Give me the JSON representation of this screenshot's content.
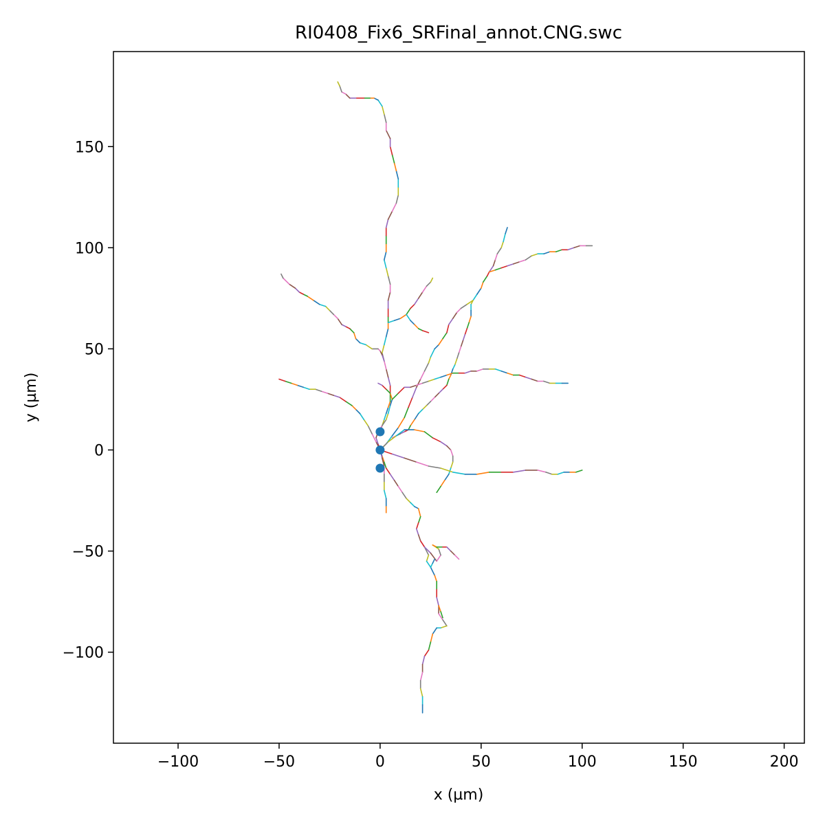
{
  "chart_data": {
    "type": "line",
    "title": "RI0408_Fix6_SRFinal_annot.CNG.swc",
    "xlabel": "x (µm)",
    "ylabel": "y (µm)",
    "xlim": [
      -132,
      210
    ],
    "ylim": [
      -145,
      197
    ],
    "xticks": [
      -100,
      -50,
      0,
      50,
      100,
      150,
      200
    ],
    "yticks": [
      -100,
      -50,
      0,
      50,
      100,
      150
    ],
    "grid": false,
    "legend": "none",
    "segment_colors": [
      "#1f77b4",
      "#ff7f0e",
      "#2ca02c",
      "#d62728",
      "#9467bd",
      "#8c564b",
      "#e377c2",
      "#7f7f7f",
      "#bcbd22",
      "#17becf"
    ],
    "marker_color": "#1f77b4",
    "soma_points": [
      [
        0,
        9
      ],
      [
        0,
        0
      ],
      [
        0,
        -9
      ]
    ],
    "branches": [
      [
        [
          0,
          0
        ],
        [
          1,
          -3
        ],
        [
          2,
          -6
        ],
        [
          3,
          -9
        ],
        [
          5,
          -12
        ],
        [
          7,
          -15
        ],
        [
          9,
          -18
        ],
        [
          11,
          -21
        ],
        [
          13,
          -24
        ],
        [
          15,
          -26
        ],
        [
          17,
          -28
        ],
        [
          19,
          -29
        ],
        [
          20,
          -33
        ],
        [
          19,
          -36
        ],
        [
          18,
          -39
        ],
        [
          19,
          -42
        ],
        [
          20,
          -45
        ],
        [
          22,
          -48
        ],
        [
          24,
          -52
        ],
        [
          23,
          -55
        ],
        [
          25,
          -58
        ],
        [
          27,
          -62
        ],
        [
          28,
          -65
        ],
        [
          28,
          -69
        ],
        [
          28,
          -73
        ],
        [
          29,
          -77
        ],
        [
          29,
          -81
        ],
        [
          31,
          -84
        ],
        [
          33,
          -87
        ],
        [
          30,
          -88
        ],
        [
          28,
          -88
        ],
        [
          26,
          -91
        ],
        [
          25,
          -95
        ],
        [
          24,
          -99
        ],
        [
          22,
          -102
        ],
        [
          21,
          -106
        ],
        [
          21,
          -110
        ],
        [
          20,
          -114
        ],
        [
          20,
          -118
        ],
        [
          21,
          -122
        ],
        [
          21,
          -126
        ],
        [
          21,
          -130
        ]
      ],
      [
        [
          29,
          -77
        ],
        [
          30,
          -80
        ],
        [
          31,
          -83
        ]
      ],
      [
        [
          20,
          -45
        ],
        [
          22,
          -48
        ],
        [
          25,
          -51
        ],
        [
          28,
          -55
        ],
        [
          30,
          -52
        ],
        [
          29,
          -49
        ],
        [
          26,
          -47
        ]
      ],
      [
        [
          25,
          -58
        ],
        [
          26,
          -56
        ],
        [
          27,
          -54
        ]
      ],
      [
        [
          26,
          -47
        ],
        [
          28,
          -48
        ],
        [
          31,
          -48
        ],
        [
          33,
          -48
        ],
        [
          35,
          -50
        ],
        [
          37,
          -52
        ],
        [
          39,
          -54
        ]
      ],
      [
        [
          0,
          9
        ],
        [
          1,
          12
        ],
        [
          2,
          15
        ],
        [
          3,
          18
        ],
        [
          4,
          21
        ],
        [
          5,
          24
        ],
        [
          5,
          28
        ],
        [
          5,
          32
        ],
        [
          4,
          36
        ],
        [
          3,
          40
        ],
        [
          2,
          44
        ],
        [
          1,
          48
        ],
        [
          2,
          52
        ],
        [
          3,
          56
        ],
        [
          4,
          60
        ],
        [
          4,
          63
        ],
        [
          4,
          66
        ],
        [
          4,
          70
        ],
        [
          4,
          74
        ],
        [
          5,
          78
        ],
        [
          5,
          82
        ],
        [
          4,
          86
        ],
        [
          3,
          90
        ],
        [
          2,
          94
        ],
        [
          3,
          98
        ],
        [
          3,
          102
        ],
        [
          3,
          106
        ],
        [
          3,
          110
        ],
        [
          4,
          114
        ],
        [
          6,
          118
        ],
        [
          8,
          122
        ],
        [
          9,
          126
        ],
        [
          9,
          130
        ],
        [
          9,
          134
        ],
        [
          8,
          138
        ],
        [
          7,
          142
        ],
        [
          6,
          146
        ],
        [
          5,
          150
        ],
        [
          5,
          154
        ],
        [
          3,
          158
        ],
        [
          3,
          162
        ],
        [
          2,
          166
        ],
        [
          1,
          170
        ],
        [
          -1,
          173
        ],
        [
          -3,
          174
        ],
        [
          -5,
          174
        ],
        [
          -8,
          174
        ],
        [
          -12,
          174
        ],
        [
          -15,
          174
        ],
        [
          -17,
          176
        ],
        [
          -19,
          177
        ],
        [
          -20,
          180
        ],
        [
          -21,
          182
        ]
      ],
      [
        [
          4,
          63
        ],
        [
          7,
          64
        ],
        [
          10,
          65
        ],
        [
          13,
          67
        ],
        [
          15,
          70
        ],
        [
          17,
          72
        ],
        [
          19,
          75
        ],
        [
          21,
          78
        ],
        [
          23,
          81
        ],
        [
          25,
          83
        ],
        [
          26,
          85
        ]
      ],
      [
        [
          13,
          67
        ],
        [
          15,
          64
        ],
        [
          17,
          62
        ],
        [
          19,
          60
        ],
        [
          21,
          59
        ],
        [
          24,
          58
        ]
      ],
      [
        [
          2,
          44
        ],
        [
          1,
          47
        ],
        [
          0,
          49
        ],
        [
          -1,
          50
        ],
        [
          -4,
          50
        ],
        [
          -7,
          52
        ],
        [
          -10,
          53
        ],
        [
          -12,
          55
        ],
        [
          -13,
          58
        ],
        [
          -15,
          60
        ],
        [
          -17,
          61
        ],
        [
          -19,
          62
        ],
        [
          -21,
          65
        ],
        [
          -23,
          67
        ],
        [
          -25,
          69
        ],
        [
          -27,
          71
        ],
        [
          -30,
          72
        ],
        [
          -33,
          74
        ],
        [
          -36,
          76
        ],
        [
          -38,
          77
        ],
        [
          -40,
          78
        ],
        [
          -42,
          80
        ],
        [
          -45,
          82
        ],
        [
          -48,
          85
        ],
        [
          -49,
          87
        ]
      ],
      [
        [
          0,
          0
        ],
        [
          3,
          3
        ],
        [
          6,
          7
        ],
        [
          9,
          11
        ],
        [
          12,
          16
        ],
        [
          14,
          21
        ],
        [
          16,
          26
        ],
        [
          18,
          31
        ],
        [
          20,
          35
        ],
        [
          22,
          39
        ],
        [
          24,
          43
        ],
        [
          25,
          46
        ],
        [
          27,
          50
        ],
        [
          29,
          52
        ],
        [
          31,
          55
        ],
        [
          33,
          58
        ],
        [
          34,
          62
        ],
        [
          36,
          65
        ],
        [
          38,
          68
        ],
        [
          40,
          70
        ],
        [
          43,
          72
        ],
        [
          46,
          74
        ],
        [
          48,
          77
        ],
        [
          50,
          80
        ],
        [
          51,
          83
        ],
        [
          53,
          86
        ],
        [
          54,
          88
        ],
        [
          56,
          91
        ],
        [
          57,
          94
        ],
        [
          58,
          97
        ],
        [
          60,
          100
        ],
        [
          61,
          103
        ],
        [
          62,
          107
        ],
        [
          63,
          110
        ]
      ],
      [
        [
          54,
          88
        ],
        [
          57,
          89
        ],
        [
          60,
          90
        ],
        [
          63,
          91
        ],
        [
          66,
          92
        ],
        [
          69,
          93
        ],
        [
          72,
          94
        ],
        [
          75,
          96
        ],
        [
          78,
          97
        ],
        [
          81,
          97
        ],
        [
          84,
          98
        ],
        [
          87,
          98
        ],
        [
          90,
          99
        ],
        [
          93,
          99
        ],
        [
          96,
          100
        ],
        [
          99,
          101
        ],
        [
          102,
          101
        ],
        [
          105,
          101
        ]
      ],
      [
        [
          46,
          74
        ],
        [
          45,
          72
        ],
        [
          45,
          69
        ],
        [
          45,
          66
        ],
        [
          44,
          63
        ],
        [
          43,
          60
        ],
        [
          42,
          57
        ],
        [
          41,
          54
        ],
        [
          40,
          51
        ],
        [
          39,
          48
        ],
        [
          38,
          45
        ],
        [
          37,
          42
        ],
        [
          36,
          40
        ],
        [
          35,
          37
        ],
        [
          34,
          35
        ],
        [
          33,
          32
        ],
        [
          31,
          30
        ],
        [
          29,
          28
        ],
        [
          27,
          26
        ],
        [
          25,
          24
        ],
        [
          23,
          22
        ],
        [
          21,
          20
        ],
        [
          19,
          18
        ],
        [
          17,
          15
        ],
        [
          15,
          12
        ],
        [
          14,
          10
        ],
        [
          12,
          9
        ],
        [
          10,
          8
        ],
        [
          8,
          7
        ],
        [
          6,
          6
        ]
      ],
      [
        [
          0,
          0
        ],
        [
          4,
          4
        ],
        [
          8,
          7
        ],
        [
          12,
          10
        ],
        [
          17,
          10
        ],
        [
          22,
          9
        ],
        [
          26,
          6
        ],
        [
          30,
          4
        ],
        [
          33,
          2
        ],
        [
          35,
          0
        ],
        [
          36,
          -3
        ],
        [
          36,
          -6
        ],
        [
          35,
          -9
        ],
        [
          34,
          -12
        ],
        [
          32,
          -15
        ],
        [
          30,
          -18
        ],
        [
          28,
          -21
        ]
      ],
      [
        [
          0,
          0
        ],
        [
          6,
          -2
        ],
        [
          12,
          -4
        ],
        [
          18,
          -6
        ],
        [
          24,
          -8
        ],
        [
          30,
          -9
        ],
        [
          36,
          -11
        ],
        [
          42,
          -12
        ],
        [
          48,
          -12
        ],
        [
          54,
          -11
        ],
        [
          60,
          -11
        ],
        [
          66,
          -11
        ],
        [
          72,
          -10
        ],
        [
          78,
          -10
        ],
        [
          82,
          -11
        ],
        [
          85,
          -12
        ],
        [
          88,
          -12
        ],
        [
          91,
          -11
        ],
        [
          94,
          -11
        ],
        [
          97,
          -11
        ],
        [
          100,
          -10
        ]
      ],
      [
        [
          0,
          0
        ],
        [
          -1,
          3
        ],
        [
          -2,
          6
        ],
        [
          -1,
          9
        ],
        [
          1,
          12
        ],
        [
          3,
          15
        ],
        [
          4,
          18
        ],
        [
          5,
          22
        ],
        [
          6,
          25
        ],
        [
          5,
          28
        ],
        [
          3,
          30
        ],
        [
          1,
          32
        ],
        [
          -1,
          33
        ]
      ],
      [
        [
          0,
          0
        ],
        [
          -2,
          4
        ],
        [
          -4,
          8
        ],
        [
          -6,
          12
        ],
        [
          -8,
          15
        ],
        [
          -10,
          18
        ],
        [
          -12,
          20
        ],
        [
          -14,
          22
        ],
        [
          -17,
          24
        ],
        [
          -20,
          26
        ],
        [
          -23,
          27
        ],
        [
          -26,
          28
        ],
        [
          -29,
          29
        ],
        [
          -32,
          30
        ],
        [
          -35,
          30
        ],
        [
          -38,
          31
        ],
        [
          -41,
          32
        ],
        [
          -44,
          33
        ],
        [
          -47,
          34
        ],
        [
          -50,
          35
        ]
      ],
      [
        [
          0,
          0
        ],
        [
          1,
          -4
        ],
        [
          2,
          -8
        ],
        [
          2,
          -12
        ],
        [
          2,
          -16
        ],
        [
          2,
          -20
        ],
        [
          3,
          -24
        ],
        [
          3,
          -28
        ],
        [
          3,
          -31
        ]
      ],
      [
        [
          6,
          25
        ],
        [
          9,
          28
        ],
        [
          12,
          31
        ],
        [
          15,
          31
        ],
        [
          18,
          32
        ],
        [
          21,
          33
        ],
        [
          24,
          34
        ],
        [
          27,
          35
        ],
        [
          30,
          36
        ],
        [
          33,
          37
        ],
        [
          36,
          38
        ],
        [
          39,
          38
        ],
        [
          42,
          38
        ],
        [
          45,
          39
        ],
        [
          48,
          39
        ],
        [
          51,
          40
        ],
        [
          54,
          40
        ],
        [
          57,
          40
        ],
        [
          60,
          39
        ],
        [
          63,
          38
        ],
        [
          66,
          37
        ],
        [
          69,
          37
        ],
        [
          72,
          36
        ],
        [
          75,
          35
        ],
        [
          78,
          34
        ],
        [
          81,
          34
        ],
        [
          84,
          33
        ],
        [
          87,
          33
        ],
        [
          90,
          33
        ],
        [
          93,
          33
        ]
      ]
    ]
  }
}
